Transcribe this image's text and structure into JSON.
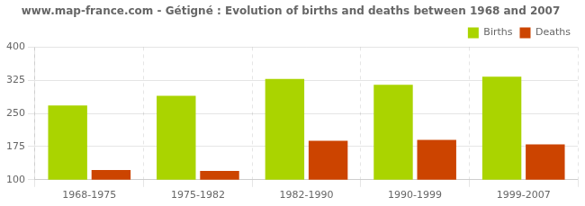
{
  "chart_data": {
    "type": "bar",
    "title": "www.map-france.com - Gétigné : Evolution of births and deaths between 1968 and 2007",
    "categories": [
      "1968-1975",
      "1975-1982",
      "1982-1990",
      "1990-1999",
      "1999-2007"
    ],
    "series": [
      {
        "name": "Births",
        "color": "#aad400",
        "values": [
          268,
          290,
          328,
          315,
          333
        ]
      },
      {
        "name": "Deaths",
        "color": "#cc4400",
        "values": [
          122,
          120,
          188,
          190,
          180
        ]
      }
    ],
    "ylim": [
      100,
      400
    ],
    "yticks": [
      100,
      175,
      250,
      325,
      400
    ],
    "grid": true,
    "legend": "upper right"
  }
}
